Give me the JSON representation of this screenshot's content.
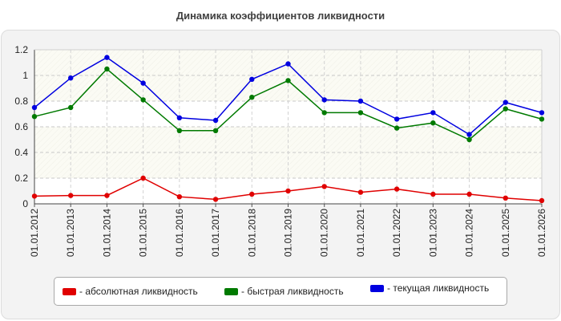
{
  "chart_data": {
    "type": "line",
    "title": "Динамика коэффициентов ликвидности",
    "xlabel": "",
    "ylabel": "",
    "ylim": [
      0,
      1.2
    ],
    "yticks": [
      "0",
      "0.2",
      "0.4",
      "0.6",
      "0.8",
      "1",
      "1.2"
    ],
    "grid": true,
    "legend_position": "bottom",
    "categories": [
      "01.01.2012",
      "01.01.2013",
      "01.01.2014",
      "01.01.2015",
      "01.01.2016",
      "01.01.2017",
      "01.01.2018",
      "01.01.2019",
      "01.01.2020",
      "01.01.2021",
      "01.01.2022",
      "01.01.2023",
      "01.01.2024",
      "01.01.2025",
      "01.01.2026"
    ],
    "series": [
      {
        "name": "- абсолютная ликвидность",
        "color": "#e00000",
        "values": [
          0.06,
          0.065,
          0.065,
          0.2,
          0.055,
          0.035,
          0.075,
          0.1,
          0.135,
          0.09,
          0.115,
          0.075,
          0.075,
          0.045,
          0.025
        ]
      },
      {
        "name": "- быстрая ликвидность",
        "color": "#007a00",
        "values": [
          0.68,
          0.75,
          1.05,
          0.81,
          0.57,
          0.57,
          0.83,
          0.96,
          0.71,
          0.71,
          0.59,
          0.63,
          0.5,
          0.74,
          0.66
        ]
      },
      {
        "name": "- текущая ликвидность",
        "color": "#0000e0",
        "values": [
          0.75,
          0.98,
          1.14,
          0.94,
          0.67,
          0.65,
          0.97,
          1.09,
          0.81,
          0.8,
          0.66,
          0.71,
          0.54,
          0.79,
          0.71
        ]
      }
    ]
  }
}
